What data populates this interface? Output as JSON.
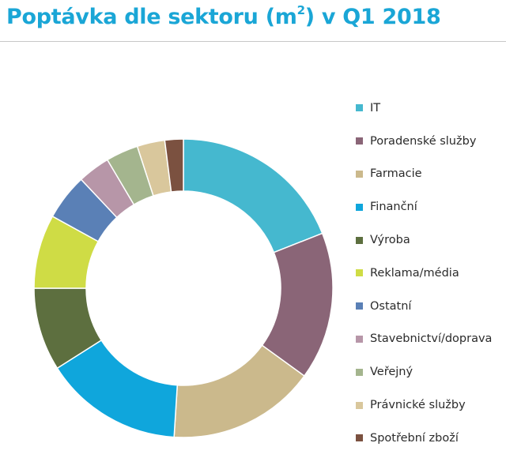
{
  "title": {
    "prefix": "Poptávka dle sektoru (m",
    "superscript": "2",
    "suffix": ") v Q1 2018"
  },
  "chart_data": {
    "type": "pie",
    "donut": true,
    "legend_position": "right",
    "slices": [
      {
        "label": "IT",
        "value": 19,
        "color": "#45b8cf"
      },
      {
        "label": "Poradenské služby",
        "value": 16,
        "color": "#8a6577"
      },
      {
        "label": "Farmacie",
        "value": 16,
        "color": "#cbb98c"
      },
      {
        "label": "Finanční",
        "value": 15,
        "color": "#0fa6dc"
      },
      {
        "label": "Výroba",
        "value": 9,
        "color": "#5d6f3f"
      },
      {
        "label": "Reklama/média",
        "value": 8,
        "color": "#cfdc45"
      },
      {
        "label": "Ostatní",
        "value": 5,
        "color": "#5a80b6"
      },
      {
        "label": "Stavebnictví/doprava",
        "value": 3.5,
        "color": "#b796a8"
      },
      {
        "label": "Veřejný",
        "value": 3.5,
        "color": "#a4b58e"
      },
      {
        "label": "Právnické služby",
        "value": 3,
        "color": "#d9c79c"
      },
      {
        "label": "Spotřební zboží",
        "value": 2,
        "color": "#7b5140"
      }
    ]
  }
}
